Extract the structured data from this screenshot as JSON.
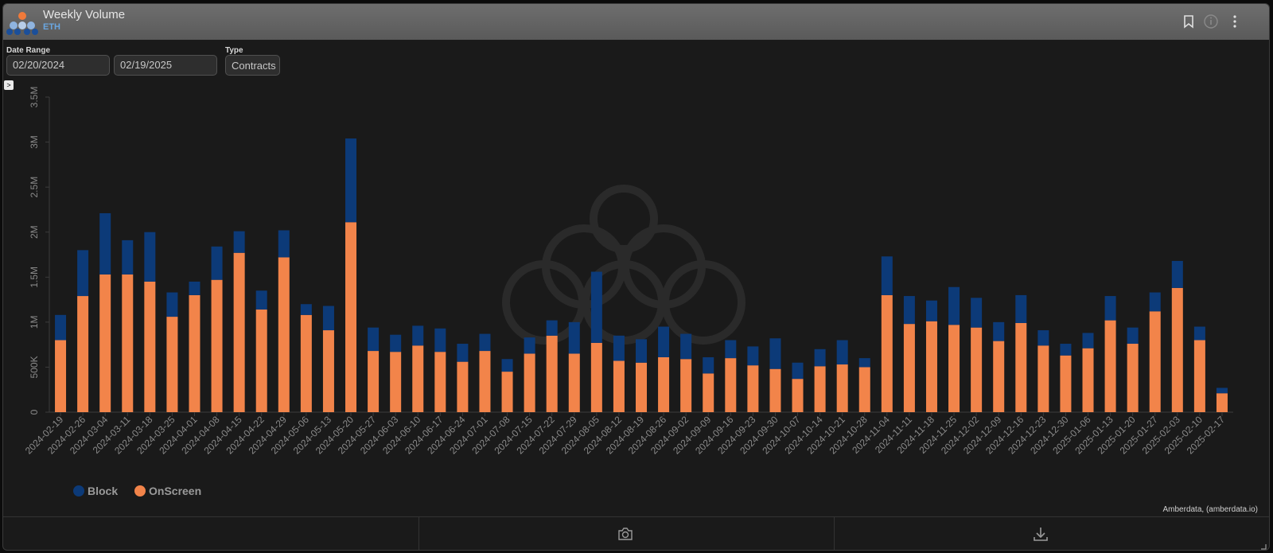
{
  "header": {
    "title": "Weekly Volume",
    "subtitle": "ETH"
  },
  "controls": {
    "date_range_label": "Date Range",
    "start_date": "02/20/2024",
    "end_date": "02/19/2025",
    "type_label": "Type",
    "type_value": "Contracts"
  },
  "credit": "Amberdata, (amberdata.io)",
  "icons": [
    "app-logo-icon",
    "bookmark-icon",
    "info-icon",
    "more-vert-icon",
    "expand-icon",
    "camera-icon",
    "download-icon",
    "resize-icon"
  ],
  "colors": {
    "Block": "#0c3a78",
    "OnScreen": "#f2844a"
  },
  "chart_data": {
    "type": "bar",
    "stacked": true,
    "categories": [
      "2024-02-19",
      "2024-02-26",
      "2024-03-04",
      "2024-03-11",
      "2024-03-18",
      "2024-03-25",
      "2024-04-01",
      "2024-04-08",
      "2024-04-15",
      "2024-04-22",
      "2024-04-29",
      "2024-05-06",
      "2024-05-13",
      "2024-05-20",
      "2024-05-27",
      "2024-06-03",
      "2024-06-10",
      "2024-06-17",
      "2024-06-24",
      "2024-07-01",
      "2024-07-08",
      "2024-07-15",
      "2024-07-22",
      "2024-07-29",
      "2024-08-05",
      "2024-08-12",
      "2024-08-19",
      "2024-08-26",
      "2024-09-02",
      "2024-09-09",
      "2024-09-16",
      "2024-09-23",
      "2024-09-30",
      "2024-10-07",
      "2024-10-14",
      "2024-10-21",
      "2024-10-28",
      "2024-11-04",
      "2024-11-11",
      "2024-11-18",
      "2024-11-25",
      "2024-12-02",
      "2024-12-09",
      "2024-12-16",
      "2024-12-23",
      "2024-12-30",
      "2025-01-06",
      "2025-01-13",
      "2025-01-20",
      "2025-01-27",
      "2025-02-03",
      "2025-02-10",
      "2025-02-17"
    ],
    "series": [
      {
        "name": "OnScreen",
        "values": [
          800000,
          1290000,
          1530000,
          1530000,
          1450000,
          1060000,
          1300000,
          1470000,
          1770000,
          1140000,
          1720000,
          1080000,
          910000,
          2110000,
          680000,
          670000,
          740000,
          670000,
          560000,
          680000,
          450000,
          650000,
          850000,
          650000,
          770000,
          570000,
          550000,
          610000,
          590000,
          430000,
          600000,
          520000,
          480000,
          370000,
          510000,
          530000,
          500000,
          1300000,
          980000,
          1010000,
          970000,
          940000,
          790000,
          990000,
          740000,
          630000,
          710000,
          1020000,
          760000,
          1120000,
          1380000,
          800000,
          210000
        ]
      },
      {
        "name": "Block",
        "values": [
          280000,
          510000,
          680000,
          380000,
          550000,
          270000,
          150000,
          370000,
          240000,
          210000,
          300000,
          120000,
          270000,
          930000,
          260000,
          190000,
          220000,
          260000,
          200000,
          190000,
          140000,
          180000,
          170000,
          350000,
          790000,
          280000,
          260000,
          340000,
          280000,
          180000,
          200000,
          210000,
          340000,
          180000,
          190000,
          270000,
          100000,
          430000,
          310000,
          230000,
          420000,
          330000,
          210000,
          310000,
          170000,
          130000,
          170000,
          270000,
          180000,
          210000,
          300000,
          150000,
          60000
        ]
      }
    ],
    "ylim": [
      0,
      3500000
    ],
    "yticks": [
      "0",
      "500K",
      "1M",
      "1.5M",
      "2M",
      "2.5M",
      "3M",
      "3.5M"
    ],
    "legend": [
      "Block",
      "OnScreen"
    ],
    "legend_position": "bottom-left",
    "grid": false
  }
}
